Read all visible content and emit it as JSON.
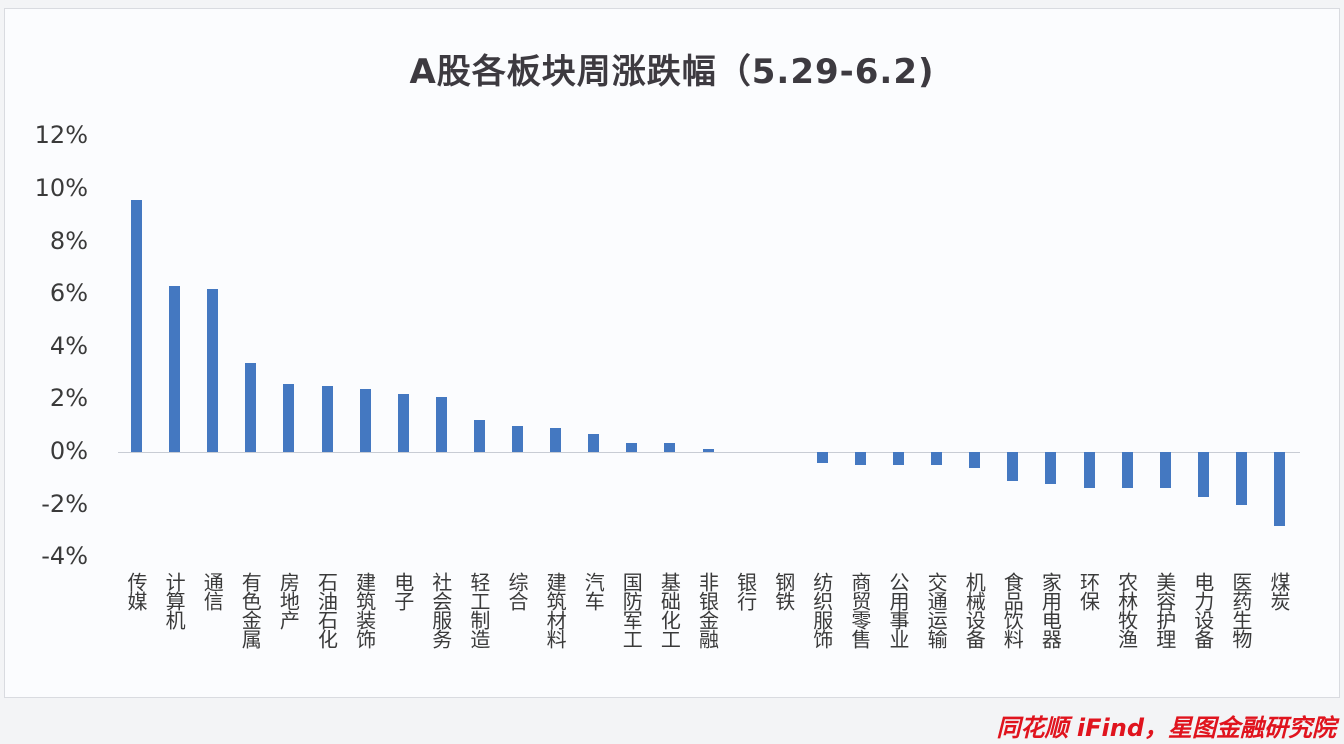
{
  "chart_data": {
    "type": "bar",
    "title": "A股各板块周涨跌幅（5.29-6.2)",
    "xlabel": "",
    "ylabel": "",
    "ylim": [
      -4,
      12
    ],
    "yticks": [
      "12%",
      "10%",
      "8%",
      "6%",
      "4%",
      "2%",
      "0%",
      "-2%",
      "-4%"
    ],
    "grid": false,
    "legend": null,
    "unit": "%",
    "categories": [
      "传媒",
      "计算机",
      "通信",
      "有色金属",
      "房地产",
      "石油石化",
      "建筑装饰",
      "电子",
      "社会服务",
      "轻工制造",
      "综合",
      "建筑材料",
      "汽车",
      "国防军工",
      "基础化工",
      "非银金融",
      "银行",
      "钢铁",
      "纺织服饰",
      "商贸零售",
      "公用事业",
      "交通运输",
      "机械设备",
      "食品饮料",
      "家用电器",
      "环保",
      "农林牧渔",
      "美容护理",
      "电力设备",
      "医药生物",
      "煤炭"
    ],
    "values": [
      9.6,
      6.3,
      6.2,
      3.4,
      2.6,
      2.5,
      2.4,
      2.2,
      2.1,
      1.2,
      1.0,
      0.9,
      0.7,
      0.35,
      0.35,
      0.12,
      0.0,
      0.0,
      -0.4,
      -0.5,
      -0.5,
      -0.5,
      -0.6,
      -1.1,
      -1.2,
      -1.35,
      -1.35,
      -1.35,
      -1.7,
      -2.0,
      -2.8
    ],
    "bar_color": "#4478c1",
    "source": "同花顺 iFind，星图金融研究院"
  }
}
